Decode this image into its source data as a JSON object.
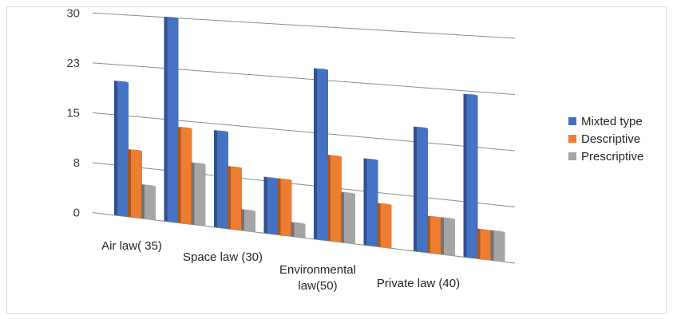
{
  "chart_data": {
    "type": "bar",
    "title": "",
    "xlabel": "",
    "ylabel": "",
    "ylim": [
      0,
      30
    ],
    "yticks": [
      "0",
      "8",
      "15",
      "23",
      "30"
    ],
    "categories": [
      "Air law( 35)",
      "",
      "Space law (30)",
      "",
      "Environmental law(50)",
      "",
      "Private law (40)",
      ""
    ],
    "series": [
      {
        "name": "Mixted type",
        "color": "#4472C4",
        "values": [
          20,
          30,
          14,
          8,
          24,
          12,
          17,
          22
        ]
      },
      {
        "name": "Descriptive",
        "color": "#ED7D31",
        "values": [
          10,
          14,
          9,
          8,
          12,
          6,
          5,
          4
        ]
      },
      {
        "name": "Prescriptive",
        "color": "#A5A5A5",
        "values": [
          5,
          9,
          3,
          2,
          7,
          0,
          5,
          4
        ]
      }
    ],
    "grid": true,
    "legend": "right"
  }
}
